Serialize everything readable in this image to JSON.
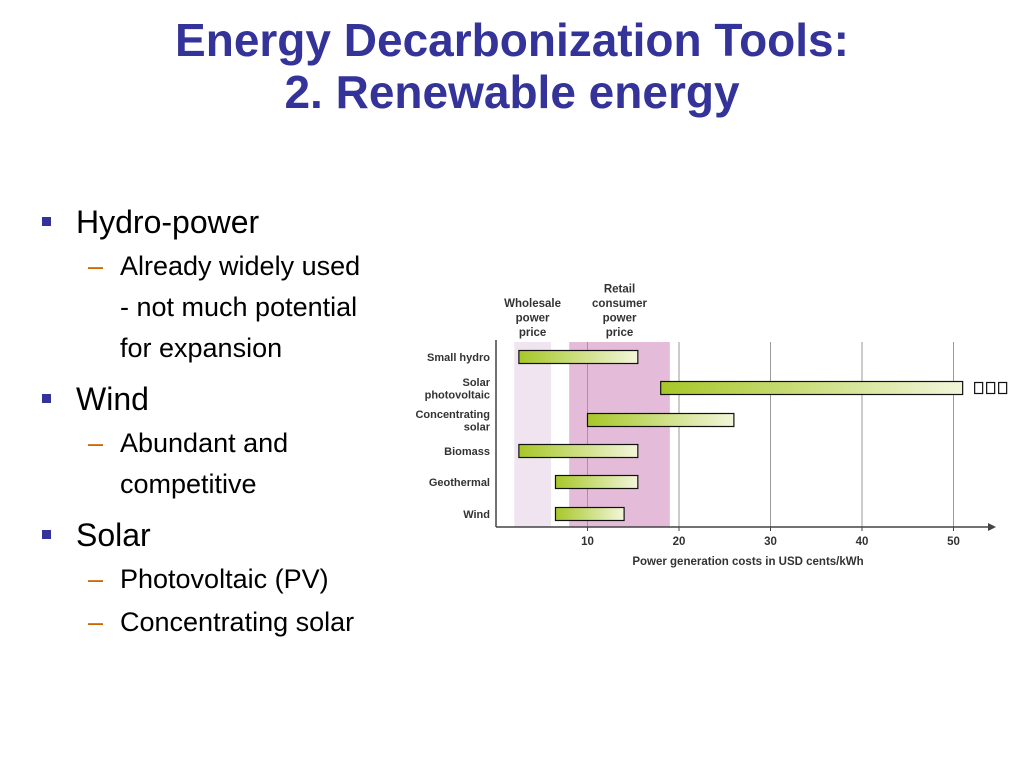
{
  "slide": {
    "title_line1": "Energy Decarbonization Tools:",
    "title_line2": "2. Renewable energy"
  },
  "bullets": [
    {
      "label": "Hydro-power",
      "subs": [
        "Already widely used - not much potential for expansion"
      ]
    },
    {
      "label": "Wind",
      "subs": [
        "Abundant and competitive"
      ]
    },
    {
      "label": "Solar",
      "subs": [
        "Photovoltaic (PV)",
        "Concentrating solar"
      ]
    }
  ],
  "colors": {
    "title": "#333399",
    "bullet_marker": "#333399",
    "dash": "#cc6600",
    "wholesale_band": "#efe4ef",
    "retail_band": "#e4bcd9",
    "bar_start": "#a7c728",
    "bar_end": "#f2f6da"
  },
  "chart_data": {
    "type": "bar",
    "orientation": "horizontal-range",
    "xlabel": "Power generation costs in USD cents/kWh",
    "xlim": [
      0,
      55
    ],
    "xticks": [
      10,
      20,
      30,
      40,
      50
    ],
    "grid": true,
    "bands": [
      {
        "label": "Wholesale power price",
        "label_lines": [
          "Wholesale",
          "power",
          "price"
        ],
        "range": [
          2,
          6
        ]
      },
      {
        "label": "Retail consumer power price",
        "label_lines": [
          "Retail",
          "consumer",
          "power",
          "price"
        ],
        "range": [
          8,
          19
        ]
      }
    ],
    "categories": [
      "Small hydro",
      "Solar photovoltaic",
      "Concentrating solar",
      "Biomass",
      "Geothermal",
      "Wind"
    ],
    "category_lines": [
      [
        "Small hydro"
      ],
      [
        "Solar",
        "photovoltaic"
      ],
      [
        "Concentrating",
        "solar"
      ],
      [
        "Biomass"
      ],
      [
        "Geothermal"
      ],
      [
        "Wind"
      ]
    ],
    "ranges": [
      [
        2.5,
        15.5
      ],
      [
        18,
        51
      ],
      [
        10,
        26
      ],
      [
        2.5,
        15.5
      ],
      [
        6.5,
        15.5
      ],
      [
        6.5,
        14
      ]
    ],
    "overflow_marker": "Solar photovoltaic"
  }
}
